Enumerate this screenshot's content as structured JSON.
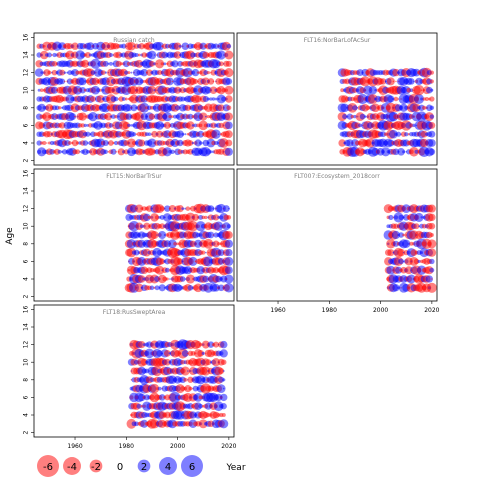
{
  "chart_data": {
    "type": "scatter",
    "ylabel": "Age",
    "xlabel": "Year",
    "xlim": [
      1944,
      2022
    ],
    "ylim": [
      1.5,
      16.5
    ],
    "x_ticks": [
      "1960",
      "1980",
      "2000",
      "2020"
    ],
    "y_ticks": [
      "2",
      "4",
      "6",
      "8",
      "10",
      "12",
      "14",
      "16"
    ],
    "colors": {
      "positive": "#0000ff",
      "negative": "#ff0000",
      "frame": "#000000",
      "title": "#808080"
    },
    "legend": {
      "placement": "bottom-left",
      "values": [
        "-6",
        "-4",
        "-2",
        "0",
        "2",
        "4",
        "6"
      ]
    },
    "panels": [
      {
        "title": "Russian catch",
        "year_range": [
          1946,
          2020
        ],
        "age_range": [
          3,
          15
        ]
      },
      {
        "title": "FLT16:NorBarLofAcSur",
        "year_range": [
          1985,
          2020
        ],
        "age_range": [
          3,
          12
        ]
      },
      {
        "title": "FLT15:NorBarTrSur",
        "year_range": [
          1981,
          2020
        ],
        "age_range": [
          3,
          12
        ]
      },
      {
        "title": "FLT007:Ecosystem_2018corr",
        "year_range": [
          2003,
          2020
        ],
        "age_range": [
          3,
          12
        ]
      },
      {
        "title": "FLT18:RusSweptArea",
        "year_range": [
          1982,
          2018
        ],
        "age_range": [
          3,
          12
        ]
      }
    ]
  }
}
